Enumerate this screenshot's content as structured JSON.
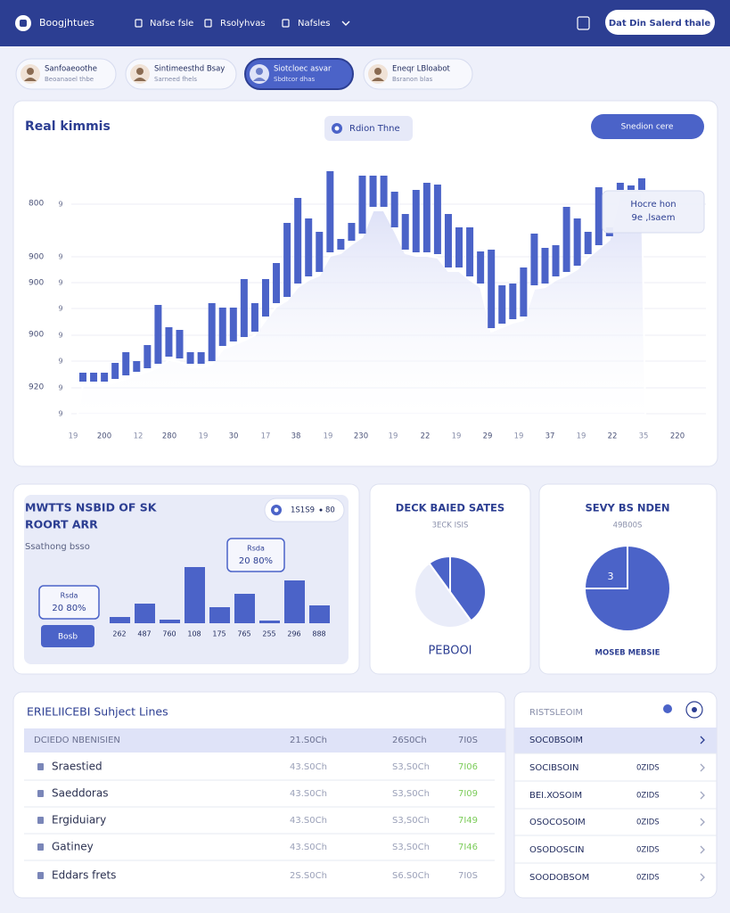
{
  "nav": {
    "brand": "Boogjhtues",
    "items": [
      "Nafse fsle",
      "Rsolyhvas",
      "Nafsles"
    ],
    "cta": "Dat Din Salerd thale"
  },
  "tabs": [
    {
      "title": "Sanfoaeoothe",
      "subtitle": "Beoanaoel thbe"
    },
    {
      "title": "Sintimeesthd Bsay",
      "subtitle": "Sarneed fhels"
    },
    {
      "title": "Siotcloec asvar",
      "subtitle": "Sbdtcor dhas"
    },
    {
      "title": "Eneqr LBloabot",
      "subtitle": "Bsranon blas"
    }
  ],
  "main_chart": {
    "title": "Real kimmis",
    "pill": "Rdion Thne",
    "button": "Snedion cere",
    "tooltip": [
      "Hocre hon",
      "9e ,lsaem"
    ],
    "y_labels": [
      "800",
      "900",
      "900",
      "900",
      "920"
    ],
    "y_minor": [
      "9",
      "9",
      "9",
      "9",
      "9",
      "9",
      "9",
      "9"
    ],
    "x_labels": [
      "19",
      "200",
      "12",
      "280",
      "19",
      "30",
      "17",
      "38",
      "19",
      "230",
      "19",
      "22",
      "19",
      "29",
      "19",
      "37",
      "19",
      "22",
      "35",
      "220"
    ],
    "color": "#4b63c8",
    "ylim": [
      0,
      300
    ],
    "bars": [
      [
        37,
        47
      ],
      [
        37,
        47
      ],
      [
        37,
        47
      ],
      [
        40,
        58
      ],
      [
        44,
        70
      ],
      [
        48,
        60
      ],
      [
        52,
        78
      ],
      [
        57,
        123
      ],
      [
        65,
        98
      ],
      [
        63,
        95
      ],
      [
        57,
        70
      ],
      [
        57,
        70
      ],
      [
        60,
        125
      ],
      [
        77,
        120
      ],
      [
        82,
        120
      ],
      [
        87,
        152
      ],
      [
        93,
        125
      ],
      [
        110,
        152
      ],
      [
        125,
        170
      ],
      [
        132,
        215
      ],
      [
        147,
        243
      ],
      [
        155,
        220
      ],
      [
        160,
        205
      ],
      [
        182,
        273
      ],
      [
        185,
        197
      ],
      [
        195,
        215
      ],
      [
        203,
        268
      ],
      [
        233,
        268
      ],
      [
        233,
        268
      ],
      [
        210,
        250
      ],
      [
        185,
        225
      ],
      [
        182,
        252
      ],
      [
        182,
        260
      ],
      [
        180,
        258
      ],
      [
        165,
        225
      ],
      [
        165,
        210
      ],
      [
        155,
        210
      ],
      [
        147,
        183
      ],
      [
        97,
        185
      ],
      [
        102,
        145
      ],
      [
        107,
        147
      ],
      [
        110,
        165
      ],
      [
        145,
        203
      ],
      [
        147,
        187
      ],
      [
        155,
        190
      ],
      [
        160,
        233
      ],
      [
        167,
        220
      ],
      [
        180,
        205
      ],
      [
        190,
        255
      ],
      [
        200,
        210
      ],
      [
        252,
        260
      ],
      [
        252,
        257
      ],
      [
        252,
        265
      ]
    ]
  },
  "card_a": {
    "title": [
      "MWTTS NSBID OF SK",
      "ROORT ARR"
    ],
    "subtitle": "Ssathong bsso",
    "pill": [
      "1S1S9",
      "80"
    ],
    "tooltips": [
      [
        "Rsda",
        "20 80%"
      ],
      [
        "Rsda",
        "20 80%"
      ]
    ],
    "button": "Bosb",
    "categories": [
      "262",
      "487",
      "760",
      "108",
      "175",
      "765",
      "255",
      "296",
      "888"
    ],
    "values": [
      7,
      22,
      4,
      63,
      18,
      33,
      3,
      48,
      20
    ],
    "ylim": [
      0,
      70
    ],
    "color": "#4b63c8"
  },
  "card_b": {
    "title": "DECK BAIED SATES",
    "subtitle": "3ECK ISIS",
    "footer": "PEBOOI",
    "values": [
      40,
      50,
      10
    ],
    "colors": [
      "#4b63c8",
      "#e9ecf9",
      "#4b63c8"
    ]
  },
  "card_c": {
    "title": "SEVY BS NDEN",
    "subtitle": "49B00S",
    "footer": "MOSEB MEBSIE",
    "slice_label": "3",
    "values": [
      75,
      25
    ],
    "colors": [
      "#4b63c8",
      "#4b63c8"
    ]
  },
  "table": {
    "title": "ERIELIICEBI Suhject Lines",
    "header": [
      "DCIEDO NBENISIEN",
      "21.S0Ch",
      "26S0Ch",
      "7I0S"
    ],
    "rows": [
      [
        "Sraestied",
        "43.S0Ch",
        "S3,S0Ch",
        "7I06"
      ],
      [
        "Saeddoras",
        "43.S0Ch",
        "S3,S0Ch",
        "7I09"
      ],
      [
        "Ergiduiary",
        "43.S0Ch",
        "S3,S0Ch",
        "7I49"
      ],
      [
        "Gatiney",
        "43.S0Ch",
        "S3,S0Ch",
        "7I46"
      ],
      [
        "Eddars frets",
        "2S.S0Ch",
        "S6.S0Ch",
        "7I0S"
      ]
    ]
  },
  "side_list": {
    "title": "RISTSLEOIM",
    "rows": [
      {
        "label": "SOC0BSOIM"
      },
      {
        "label": "SOCIBSOIN",
        "value": "0ZIDS"
      },
      {
        "label": "BEI.XOSOIM",
        "value": "0ZIDS"
      },
      {
        "label": "OSOCOSOIM",
        "value": "0ZIDS"
      },
      {
        "label": "OSODOSCIN",
        "value": "0ZIDS"
      },
      {
        "label": "SOODOBSOM",
        "value": "0ZIDS"
      }
    ]
  }
}
